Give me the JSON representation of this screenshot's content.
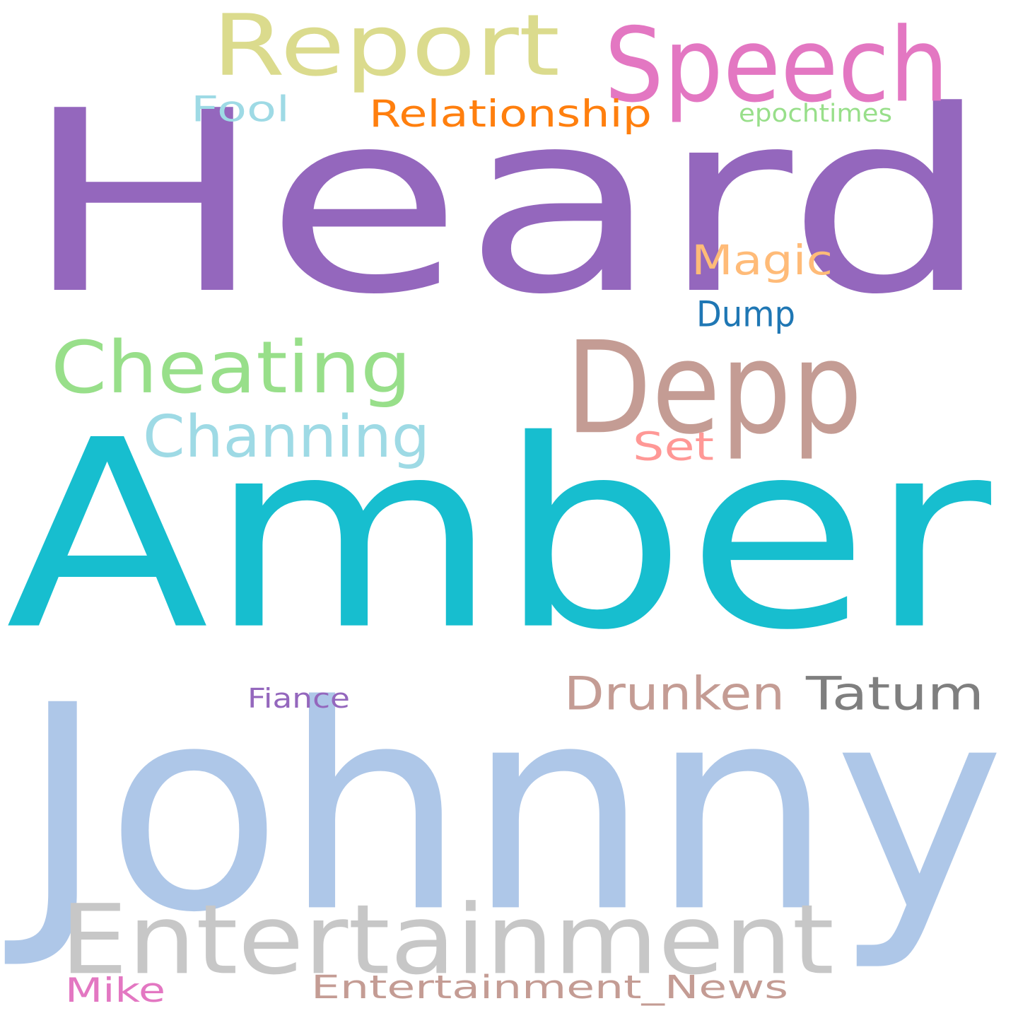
{
  "words": [
    {
      "text": "Heard",
      "color": "#9467bd"
    },
    {
      "text": "Amber",
      "color": "#17becf"
    },
    {
      "text": "Johnny",
      "color": "#aec7e8"
    },
    {
      "text": "Entertainment",
      "color": "#c7c7c7"
    },
    {
      "text": "Depp",
      "color": "#c49c94"
    },
    {
      "text": "Report",
      "color": "#dbdb8d"
    },
    {
      "text": "Speech",
      "color": "#e377c2"
    },
    {
      "text": "Cheating",
      "color": "#98df8a"
    },
    {
      "text": "Channing",
      "color": "#9edae5"
    },
    {
      "text": "Tatum",
      "color": "#7f7f7f"
    },
    {
      "text": "Drunken",
      "color": "#c49c94"
    },
    {
      "text": "Relationship",
      "color": "#ff7f0e"
    },
    {
      "text": "Magic",
      "color": "#ffbb78"
    },
    {
      "text": "Fool",
      "color": "#9edae5"
    },
    {
      "text": "Entertainment_News",
      "color": "#c49c94"
    },
    {
      "text": "Set",
      "color": "#ff9896"
    },
    {
      "text": "Dump",
      "color": "#1f77b4"
    },
    {
      "text": "Mike",
      "color": "#e377c2"
    },
    {
      "text": "epochtimes",
      "color": "#98df8a"
    },
    {
      "text": "Fiance",
      "color": "#9467bd"
    }
  ]
}
